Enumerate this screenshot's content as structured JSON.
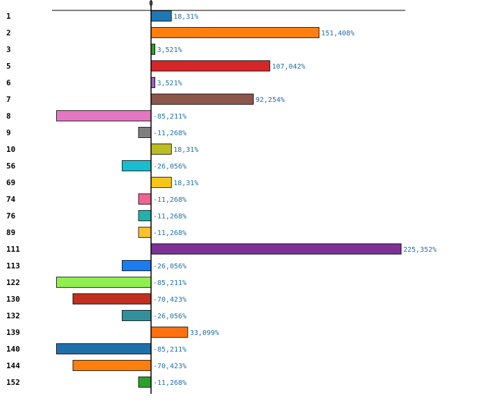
{
  "chart_data": {
    "type": "bar",
    "orientation": "horizontal",
    "title": "",
    "xlabel": "",
    "ylabel": "",
    "zero_tick_label": "0",
    "xlim": [
      -100,
      250
    ],
    "grid": false,
    "value_suffix": "%",
    "categories": [
      "1",
      "2",
      "3",
      "5",
      "6",
      "7",
      "8",
      "9",
      "10",
      "56",
      "69",
      "74",
      "76",
      "89",
      "111",
      "113",
      "122",
      "130",
      "132",
      "139",
      "140",
      "144",
      "152"
    ],
    "values": [
      18.31,
      151.408,
      3.521,
      107.042,
      3.521,
      92.254,
      -85.211,
      -11.268,
      18.31,
      -26.056,
      18.31,
      -11.268,
      -11.268,
      -11.268,
      225.352,
      -26.056,
      -85.211,
      -70.423,
      -26.056,
      33.099,
      -85.211,
      -70.423,
      -11.268
    ],
    "value_labels": [
      "18,31%",
      "151,408%",
      "3,521%",
      "107,042%",
      "3,521%",
      "92,254%",
      "-85,211%",
      "-11,268%",
      "18,31%",
      "-26,056%",
      "18,31%",
      "-11,268%",
      "-11,268%",
      "-11,268%",
      "225,352%",
      "-26,056%",
      "-85,211%",
      "-70,423%",
      "-26,056%",
      "33,099%",
      "-85,211%",
      "-70,423%",
      "-11,268%"
    ],
    "colors": [
      "#1f77b4",
      "#ff7f0e",
      "#2ca02c",
      "#d62728",
      "#9467bd",
      "#8c564b",
      "#e377c2",
      "#7f7f7f",
      "#bcbd22",
      "#17becf",
      "#f5c518",
      "#f06292",
      "#20b2aa",
      "#fbc02d",
      "#7b3294",
      "#1a7cf0",
      "#90ee50",
      "#c0301e",
      "#31909c",
      "#ff7010",
      "#1f6faa",
      "#ff7f0e",
      "#2ca02c"
    ]
  }
}
